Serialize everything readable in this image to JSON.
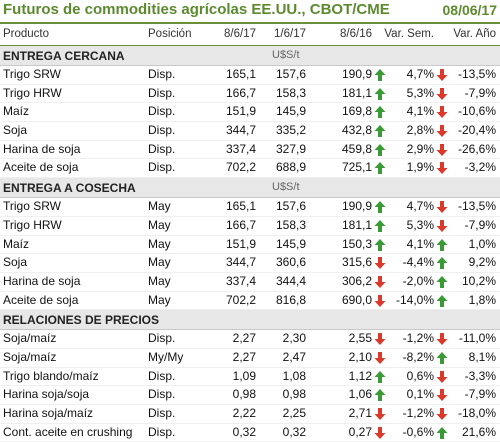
{
  "header": {
    "title": "Futuros de commodities agrícolas EE.UU., CBOT/CME",
    "date": "08/06/17"
  },
  "columns": {
    "producto": "Producto",
    "posicion": "Posición",
    "d1": "8/6/17",
    "d2": "1/6/17",
    "d3": "8/6/16",
    "var_sem": "Var. Sem.",
    "var_anio": "Var. Año"
  },
  "colors": {
    "up": "#3a9a35",
    "down": "#d93a2b",
    "brand": "#5b8a2f"
  },
  "sections": [
    {
      "name": "ENTREGA CERCANA",
      "unit": "U$S/t",
      "rows": [
        {
          "producto": "Trigo SRW",
          "posicion": "Disp.",
          "d1": "165,1",
          "d2": "157,6",
          "d3": "190,9",
          "t1": "up",
          "var_sem": "4,7%",
          "t2": "down",
          "var_anio": "-13,5%"
        },
        {
          "producto": "Trigo HRW",
          "posicion": "Disp.",
          "d1": "166,7",
          "d2": "158,3",
          "d3": "181,1",
          "t1": "up",
          "var_sem": "5,3%",
          "t2": "down",
          "var_anio": "-7,9%"
        },
        {
          "producto": "Maíz",
          "posicion": "Disp.",
          "d1": "151,9",
          "d2": "145,9",
          "d3": "169,8",
          "t1": "up",
          "var_sem": "4,1%",
          "t2": "down",
          "var_anio": "-10,6%"
        },
        {
          "producto": "Soja",
          "posicion": "Disp.",
          "d1": "344,7",
          "d2": "335,2",
          "d3": "432,8",
          "t1": "up",
          "var_sem": "2,8%",
          "t2": "down",
          "var_anio": "-20,4%"
        },
        {
          "producto": "Harina de soja",
          "posicion": "Disp.",
          "d1": "337,4",
          "d2": "327,9",
          "d3": "459,8",
          "t1": "up",
          "var_sem": "2,9%",
          "t2": "down",
          "var_anio": "-26,6%"
        },
        {
          "producto": "Aceite de soja",
          "posicion": "Disp.",
          "d1": "702,2",
          "d2": "688,9",
          "d3": "725,1",
          "t1": "up",
          "var_sem": "1,9%",
          "t2": "down",
          "var_anio": "-3,2%"
        }
      ]
    },
    {
      "name": "ENTREGA A COSECHA",
      "unit": "U$S/t",
      "rows": [
        {
          "producto": "Trigo SRW",
          "posicion": "May",
          "d1": "165,1",
          "d2": "157,6",
          "d3": "190,9",
          "t1": "up",
          "var_sem": "4,7%",
          "t2": "down",
          "var_anio": "-13,5%"
        },
        {
          "producto": "Trigo HRW",
          "posicion": "May",
          "d1": "166,7",
          "d2": "158,3",
          "d3": "181,1",
          "t1": "up",
          "var_sem": "5,3%",
          "t2": "down",
          "var_anio": "-7,9%"
        },
        {
          "producto": "Maíz",
          "posicion": "May",
          "d1": "151,9",
          "d2": "145,9",
          "d3": "150,3",
          "t1": "up",
          "var_sem": "4,1%",
          "t2": "up",
          "var_anio": "1,0%"
        },
        {
          "producto": "Soja",
          "posicion": "May",
          "d1": "344,7",
          "d2": "360,6",
          "d3": "315,6",
          "t1": "down",
          "var_sem": "-4,4%",
          "t2": "up",
          "var_anio": "9,2%"
        },
        {
          "producto": "Harina de soja",
          "posicion": "May",
          "d1": "337,4",
          "d2": "344,4",
          "d3": "306,2",
          "t1": "down",
          "var_sem": "-2,0%",
          "t2": "up",
          "var_anio": "10,2%"
        },
        {
          "producto": "Aceite de soja",
          "posicion": "May",
          "d1": "702,2",
          "d2": "816,8",
          "d3": "690,0",
          "t1": "down",
          "var_sem": "-14,0%",
          "t2": "up",
          "var_anio": "1,8%"
        }
      ]
    },
    {
      "name": "RELACIONES DE PRECIOS",
      "unit": "",
      "rows": [
        {
          "producto": "Soja/maíz",
          "posicion": "Disp.",
          "d1": "2,27",
          "d2": "2,30",
          "d3": "2,55",
          "t1": "down",
          "var_sem": "-1,2%",
          "t2": "down",
          "var_anio": "-11,0%"
        },
        {
          "producto": "Soja/maíz",
          "posicion": "My/My",
          "d1": "2,27",
          "d2": "2,47",
          "d3": "2,10",
          "t1": "down",
          "var_sem": "-8,2%",
          "t2": "up",
          "var_anio": "8,1%"
        },
        {
          "producto": "Trigo blando/maíz",
          "posicion": "Disp.",
          "d1": "1,09",
          "d2": "1,08",
          "d3": "1,12",
          "t1": "up",
          "var_sem": "0,6%",
          "t2": "down",
          "var_anio": "-3,3%"
        },
        {
          "producto": "Harina soja/soja",
          "posicion": "Disp.",
          "d1": "0,98",
          "d2": "0,98",
          "d3": "1,06",
          "t1": "up",
          "var_sem": "0,1%",
          "t2": "down",
          "var_anio": "-7,9%"
        },
        {
          "producto": "Harina soja/maíz",
          "posicion": "Disp.",
          "d1": "2,22",
          "d2": "2,25",
          "d3": "2,71",
          "t1": "down",
          "var_sem": "-1,2%",
          "t2": "down",
          "var_anio": "-18,0%"
        },
        {
          "producto": "Cont. aceite en crushing",
          "posicion": "Disp.",
          "d1": "0,32",
          "d2": "0,32",
          "d3": "0,27",
          "t1": "down",
          "var_sem": "-0,6%",
          "t2": "up",
          "var_anio": "21,6%"
        }
      ]
    }
  ]
}
